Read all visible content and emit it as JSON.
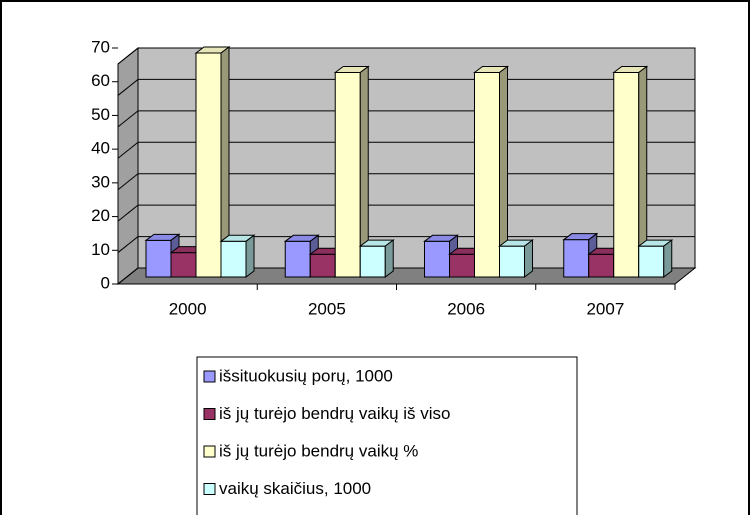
{
  "chart_data": {
    "type": "bar",
    "categories": [
      "2000",
      "2005",
      "2006",
      "2007"
    ],
    "series": [
      {
        "name": "išsituokusių porų, 1000",
        "color": "#9999ff",
        "values": [
          11.3,
          11,
          11,
          11.5
        ]
      },
      {
        "name": "iš jų turėjo bendrų vaikų iš viso",
        "color": "#993366",
        "values": [
          7.5,
          7,
          7,
          7
        ]
      },
      {
        "name": "iš jų turėjo bendrų vaikų %",
        "color": "#ffffcc",
        "values": [
          69,
          63,
          63,
          63
        ]
      },
      {
        "name": "vaikų skaičius, 1000",
        "color": "#ccffff",
        "values": [
          11,
          9.5,
          9.5,
          9.5
        ]
      }
    ],
    "ylim": [
      0,
      70
    ],
    "yticks": [
      0,
      10,
      20,
      30,
      40,
      50,
      60,
      70
    ],
    "grid": true
  }
}
